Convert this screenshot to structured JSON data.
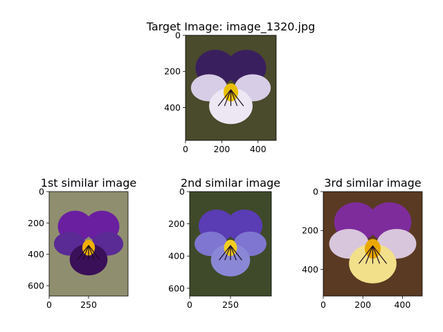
{
  "chart_data": [
    {
      "type": "image",
      "title": "Target Image: image_1320.jpg",
      "image_width": 500,
      "image_height": 582,
      "xticks": [
        0,
        200,
        400
      ],
      "yticks": [
        0,
        200,
        400
      ],
      "palette": {
        "background": "#4a4a2c",
        "petal_top": "#3a1f5e",
        "petal_side": "#d7cde6",
        "petal_lower": "#ece7f2",
        "throat": "#e8c000"
      }
    },
    {
      "type": "image",
      "title": "1st similar image",
      "image_width": 500,
      "image_height": 666,
      "xticks": [
        0,
        250
      ],
      "yticks": [
        0,
        200,
        400,
        600
      ],
      "palette": {
        "background": "#8f8f6f",
        "petal_top": "#6a1fa0",
        "petal_side": "#5a2a95",
        "petal_lower": "#3a1058",
        "throat": "#f0b000"
      }
    },
    {
      "type": "image",
      "title": "2nd similar image",
      "image_width": 500,
      "image_height": 648,
      "xticks": [
        0,
        250
      ],
      "yticks": [
        0,
        200,
        400,
        600
      ],
      "palette": {
        "background": "#3f4a2a",
        "petal_top": "#5a3cb4",
        "petal_side": "#7e76d0",
        "petal_lower": "#8a88d6",
        "throat": "#f2cc20"
      }
    },
    {
      "type": "image",
      "title": "3rd similar image",
      "image_width": 500,
      "image_height": 537,
      "xticks": [
        0,
        200,
        400
      ],
      "yticks": [
        0,
        200,
        400
      ],
      "palette": {
        "background": "#5a3a22",
        "petal_top": "#7e2c9c",
        "petal_side": "#d8c6dc",
        "petal_lower": "#f2e08a",
        "throat": "#e8a800"
      }
    }
  ]
}
